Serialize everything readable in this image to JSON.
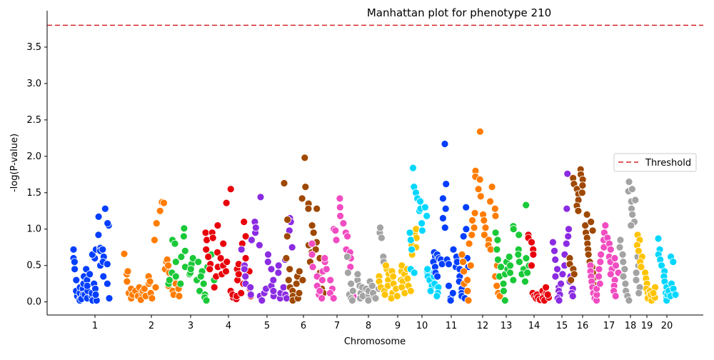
{
  "chart_data": {
    "type": "scatter",
    "title": "Manhattan plot for phenotype 210",
    "xlabel": "Chromosome",
    "ylabel": "-log(P-value)",
    "ylim": [
      -0.18,
      4.0
    ],
    "yticks": [
      0.0,
      0.5,
      1.0,
      1.5,
      2.0,
      2.5,
      3.0,
      3.5
    ],
    "ytick_labels": [
      "0.0",
      "0.5",
      "1.0",
      "1.5",
      "2.0",
      "2.5",
      "3.0",
      "3.5"
    ],
    "threshold": 3.8,
    "threshold_color": "#d62728",
    "legend": {
      "position": "right",
      "entries": [
        "Threshold"
      ]
    },
    "grid": false,
    "chromosomes": [
      {
        "label": "1",
        "color": "#023eff",
        "values": [
          0.6,
          0.55,
          0.72,
          0.45,
          0.3,
          0.08,
          0.15,
          0.05,
          0.12,
          0.02,
          0.2,
          0.18,
          0.1,
          0.04,
          0.35,
          0.25,
          0.45,
          0.1,
          0.05,
          0.15,
          0.3,
          0.22,
          0.08,
          0.02,
          0.38,
          0.12,
          0.6,
          0.65,
          0.25,
          0.18,
          0.02,
          0.1,
          0.72,
          0.75,
          1.17,
          0.92,
          0.74,
          0.5,
          0.7,
          0.62,
          0.72,
          0.35,
          0.55,
          0.52,
          1.28,
          1.05,
          1.08,
          0.25,
          0.05
        ]
      },
      {
        "label": "2",
        "color": "#ff7c00",
        "values": [
          0.66,
          0.38,
          0.42,
          0.28,
          0.12,
          0.05,
          0.18,
          0.1,
          0.15,
          0.08,
          0.2,
          0.12,
          0.03,
          0.15,
          0.18,
          0.08,
          0.25,
          0.35,
          0.28,
          0.12,
          0.05,
          0.2,
          0.85,
          1.08,
          1.25,
          1.37,
          1.36,
          0.45,
          0.55,
          0.58,
          0.5,
          0.4,
          0.22,
          0.3,
          0.15,
          0.1,
          0.25,
          0.18,
          0.08
        ]
      },
      {
        "label": "3",
        "color": "#1ac938",
        "values": [
          0.25,
          0.4,
          0.3,
          0.85,
          0.8,
          0.55,
          0.35,
          0.62,
          0.25,
          0.9,
          1.01,
          0.7,
          0.48,
          0.38,
          0.52,
          0.4,
          0.45,
          0.6,
          0.3,
          0.55,
          0.15,
          0.42,
          0.35,
          0.1,
          0.25,
          0.06,
          0.02,
          0.48,
          0.65,
          0.3,
          0.2
        ]
      },
      {
        "label": "4",
        "color": "#e8000b",
        "values": [
          0.95,
          0.85,
          0.72,
          0.62,
          0.52,
          0.45,
          0.95,
          0.88,
          0.2,
          1.05,
          0.35,
          0.68,
          0.48,
          0.38,
          0.6,
          0.8,
          0.5,
          0.42,
          0.55,
          1.36,
          1.55,
          0.15,
          0.06,
          0.1,
          0.04,
          0.08,
          0.3,
          0.45,
          0.52,
          0.38,
          0.25,
          0.12,
          0.8,
          1.1,
          0.9,
          0.6,
          0.42,
          0.18,
          0.08
        ]
      },
      {
        "label": "5",
        "color": "#8b2be2",
        "values": [
          0.72,
          0.5,
          0.45,
          0.35,
          0.25,
          0.2,
          0.1,
          0.85,
          1.1,
          0.95,
          1.02,
          0.78,
          1.44,
          0.08,
          0.02,
          0.12,
          0.18,
          0.65,
          0.55,
          0.45,
          0.22,
          0.08,
          0.15,
          0.3,
          0.5,
          0.4,
          0.05,
          0.12,
          0.2,
          0.58,
          0.1,
          0.05,
          1.15,
          1.1,
          0.98,
          0.75
        ]
      },
      {
        "label": "6",
        "color": "#9f4800",
        "values": [
          1.63,
          1.13,
          0.9,
          0.6,
          0.45,
          0.3,
          0.2,
          0.15,
          0.08,
          0.02,
          0.05,
          0.35,
          0.25,
          0.12,
          0.42,
          0.3,
          1.42,
          1.58,
          1.98,
          1.35,
          1.28,
          0.78,
          0.68,
          0.55,
          1.05,
          0.95,
          1.28,
          0.82,
          0.72,
          0.22,
          0.6,
          0.4,
          0.18,
          0.12
        ]
      },
      {
        "label": "7",
        "color": "#f14cc1",
        "values": [
          0.8,
          0.65,
          0.48,
          0.35,
          0.22,
          0.1,
          0.05,
          0.15,
          0.3,
          0.42,
          0.55,
          0.6,
          0.45,
          0.3,
          0.18,
          0.12,
          0.05,
          1.0,
          0.98,
          0.85,
          1.42,
          1.3,
          1.18,
          1.08,
          0.95,
          0.9,
          0.72,
          0.68,
          0.6,
          0.48,
          0.25,
          0.15,
          0.08
        ]
      },
      {
        "label": "8",
        "color": "#a3a3a3",
        "values": [
          0.62,
          0.4,
          0.25,
          0.1,
          0.05,
          0.02,
          0.15,
          0.3,
          0.38,
          0.22,
          0.12,
          0.05,
          0.08,
          0.2,
          0.18,
          0.1,
          0.02,
          0.15,
          0.28,
          0.22,
          0.08,
          0.12,
          0.05,
          0.18,
          0.95,
          1.02,
          0.88,
          0.62,
          0.55
        ]
      },
      {
        "label": "9",
        "color": "#ffc400",
        "values": [
          0.35,
          0.28,
          0.2,
          0.15,
          0.1,
          0.45,
          0.5,
          0.38,
          0.3,
          0.22,
          0.12,
          0.05,
          0.42,
          0.35,
          0.25,
          0.18,
          0.08,
          0.3,
          0.42,
          0.5,
          0.28,
          0.2,
          0.12,
          0.38,
          0.45,
          0.32,
          0.22,
          0.15,
          0.65,
          0.78,
          0.95,
          1.0,
          0.88,
          0.75
        ]
      },
      {
        "label": "10",
        "color": "#00d7ff",
        "values": [
          0.95,
          0.85,
          0.72,
          0.45,
          0.4,
          1.84,
          1.58,
          1.5,
          1.42,
          1.25,
          1.08,
          0.98,
          1.38,
          1.28,
          1.3,
          1.18,
          0.42,
          0.38,
          0.35,
          0.28,
          0.45,
          0.3,
          0.22,
          0.15,
          0.4,
          0.35,
          0.25,
          0.2,
          0.12,
          0.08
        ]
      },
      {
        "label": "11",
        "color": "#023eff",
        "values": [
          0.68,
          0.62,
          0.55,
          0.48,
          0.4,
          0.35,
          0.65,
          0.6,
          0.58,
          0.52,
          1.42,
          1.28,
          1.15,
          1.02,
          2.17,
          1.62,
          0.58,
          0.52,
          0.22,
          0.05,
          0.02,
          0.12,
          0.72,
          0.62,
          0.48,
          0.55,
          0.45,
          0.35,
          0.28,
          0.18,
          0.12,
          0.08,
          0.05,
          0.9,
          1.3,
          1.0,
          0.6,
          0.48
        ]
      },
      {
        "label": "12",
        "color": "#ff7c00",
        "values": [
          0.65,
          0.55,
          0.42,
          0.25,
          0.15,
          0.02,
          0.3,
          0.5,
          0.8,
          0.92,
          1.02,
          1.12,
          1.22,
          1.8,
          1.72,
          1.55,
          1.45,
          2.34,
          1.68,
          1.2,
          1.12,
          1.02,
          0.92,
          0.85,
          0.78,
          0.72,
          1.58,
          1.38,
          1.28,
          1.18,
          0.5,
          0.35,
          0.22,
          0.12,
          0.08
        ]
      },
      {
        "label": "13",
        "color": "#1ac938",
        "values": [
          0.95,
          0.85,
          0.72,
          0.58,
          0.48,
          0.35,
          0.25,
          0.15,
          0.02,
          0.38,
          0.45,
          0.55,
          0.62,
          0.5,
          0.4,
          0.3,
          1.04,
          1.0,
          0.92,
          0.72,
          0.65,
          0.55,
          0.45,
          0.38,
          0.28,
          1.33,
          0.6,
          0.5,
          0.4
        ]
      },
      {
        "label": "14",
        "color": "#e8000b",
        "values": [
          0.92,
          0.88,
          0.82,
          0.72,
          0.65,
          0.5,
          0.12,
          0.08,
          0.05,
          0.02,
          0.1,
          0.06,
          0.03,
          0.15,
          0.08,
          0.05,
          0.02,
          0.12,
          0.2,
          0.06,
          0.1
        ]
      },
      {
        "label": "15",
        "color": "#8b2be2",
        "values": [
          0.82,
          0.7,
          0.58,
          0.45,
          0.35,
          0.2,
          0.15,
          0.1,
          0.05,
          0.02,
          0.25,
          0.38,
          0.5,
          0.65,
          0.8,
          0.9,
          1.0,
          1.28,
          1.76,
          0.35,
          0.28,
          0.18,
          0.12,
          0.08
        ]
      },
      {
        "label": "16",
        "color": "#9f4800",
        "values": [
          0.6,
          0.52,
          0.45,
          0.38,
          0.3,
          1.7,
          1.62,
          1.55,
          1.48,
          1.4,
          1.32,
          1.25,
          1.82,
          1.75,
          1.68,
          1.6,
          1.5,
          1.05,
          0.95,
          0.88,
          0.8,
          0.72,
          0.65,
          1.2,
          1.1,
          0.98,
          0.55,
          0.48,
          0.4,
          0.32,
          0.25
        ]
      },
      {
        "label": "17",
        "color": "#f14cc1",
        "values": [
          0.5,
          0.42,
          0.35,
          0.28,
          0.2,
          0.12,
          0.05,
          0.02,
          0.1,
          0.18,
          0.25,
          0.35,
          0.45,
          0.55,
          0.65,
          0.75,
          0.85,
          1.05,
          0.95,
          0.88,
          0.8,
          0.72,
          0.62,
          0.55,
          0.45,
          0.38,
          0.3,
          0.22,
          0.15,
          0.08,
          0.6,
          0.5,
          0.4
        ]
      },
      {
        "label": "18",
        "color": "#a3a3a3",
        "values": [
          0.85,
          0.75,
          0.65,
          0.55,
          0.45,
          0.35,
          0.25,
          0.15,
          0.08,
          0.02,
          1.65,
          1.52,
          1.38,
          1.28,
          1.2,
          1.1,
          1.05,
          1.55,
          1.4,
          0.62,
          0.5,
          0.4,
          0.3,
          0.2,
          0.12
        ]
      },
      {
        "label": "19",
        "color": "#ffc400",
        "values": [
          0.92,
          0.85,
          0.78,
          0.7,
          0.62,
          0.55,
          0.48,
          0.4,
          0.32,
          0.25,
          0.18,
          0.12,
          0.08,
          0.05,
          0.02,
          0.15,
          0.1,
          0.06,
          0.2,
          0.12
        ]
      },
      {
        "label": "20",
        "color": "#00d7ff",
        "values": [
          0.87,
          0.72,
          0.65,
          0.58,
          0.5,
          0.42,
          0.35,
          0.28,
          0.2,
          0.12,
          0.05,
          0.02,
          0.1,
          0.15,
          0.08,
          0.62,
          0.55,
          0.25,
          0.18,
          0.1
        ]
      }
    ]
  }
}
